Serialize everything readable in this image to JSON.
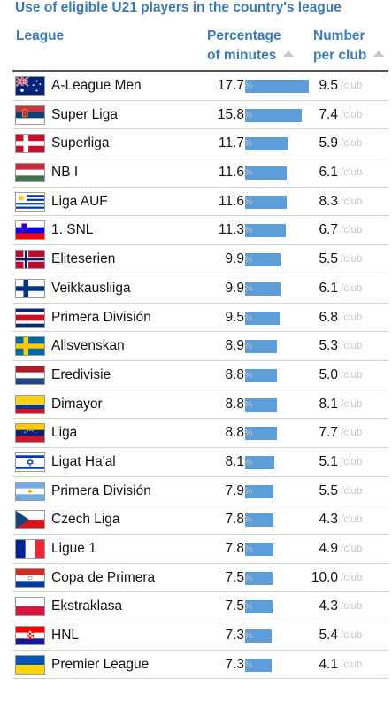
{
  "title": "Use of eligible U21 players in the country's league",
  "headers": {
    "league": "League",
    "pct_line1": "Percentage",
    "pct_line2": "of minutes",
    "num_line1": "Number",
    "num_line2": "per club"
  },
  "units": {
    "pct": "%",
    "num": "/club"
  },
  "colors": {
    "bar": "#5d9dd9",
    "header_text": "#3a7ab8",
    "unit_text": "#c4c4c4"
  },
  "chart_data": {
    "type": "table",
    "title": "Use of eligible U21 players in the country's league",
    "columns": [
      "League",
      "Percentage of minutes",
      "Number per club"
    ],
    "rows": [
      {
        "flag": "australia-flag",
        "league": "A-League Men",
        "pct": 17.7,
        "pct_text": "17.7",
        "num": "9.5"
      },
      {
        "flag": "serbia-flag",
        "league": "Super Liga",
        "pct": 15.8,
        "pct_text": "15.8",
        "num": "7.4"
      },
      {
        "flag": "denmark-flag",
        "league": "Superliga",
        "pct": 11.7,
        "pct_text": "11.7",
        "num": "5.9"
      },
      {
        "flag": "hungary-flag",
        "league": "NB I",
        "pct": 11.6,
        "pct_text": "11.6",
        "num": "6.1"
      },
      {
        "flag": "uruguay-flag",
        "league": "Liga AUF",
        "pct": 11.6,
        "pct_text": "11.6",
        "num": "8.3"
      },
      {
        "flag": "slovenia-flag",
        "league": "1. SNL",
        "pct": 11.3,
        "pct_text": "11.3",
        "num": "6.7"
      },
      {
        "flag": "norway-flag",
        "league": "Eliteserien",
        "pct": 9.9,
        "pct_text": "9.9",
        "num": "5.5"
      },
      {
        "flag": "finland-flag",
        "league": "Veikkausliiga",
        "pct": 9.9,
        "pct_text": "9.9",
        "num": "6.1"
      },
      {
        "flag": "costa-rica-flag",
        "league": "Primera División",
        "pct": 9.5,
        "pct_text": "9.5",
        "num": "6.8"
      },
      {
        "flag": "sweden-flag",
        "league": "Allsvenskan",
        "pct": 8.9,
        "pct_text": "8.9",
        "num": "5.3"
      },
      {
        "flag": "netherlands-flag",
        "league": "Eredivisie",
        "pct": 8.8,
        "pct_text": "8.8",
        "num": "5.0"
      },
      {
        "flag": "colombia-flag",
        "league": "Dimayor",
        "pct": 8.8,
        "pct_text": "8.8",
        "num": "8.1"
      },
      {
        "flag": "venezuela-flag",
        "league": "Liga",
        "pct": 8.8,
        "pct_text": "8.8",
        "num": "7.7"
      },
      {
        "flag": "israel-flag",
        "league": "Ligat Ha'al",
        "pct": 8.1,
        "pct_text": "8.1",
        "num": "5.1"
      },
      {
        "flag": "argentina-flag",
        "league": "Primera División",
        "pct": 7.9,
        "pct_text": "7.9",
        "num": "5.5"
      },
      {
        "flag": "czech-flag",
        "league": "Czech Liga",
        "pct": 7.8,
        "pct_text": "7.8",
        "num": "4.3"
      },
      {
        "flag": "france-flag",
        "league": "Ligue 1",
        "pct": 7.8,
        "pct_text": "7.8",
        "num": "4.9"
      },
      {
        "flag": "paraguay-flag",
        "league": "Copa de Primera",
        "pct": 7.5,
        "pct_text": "7.5",
        "num": "10.0"
      },
      {
        "flag": "poland-flag",
        "league": "Ekstraklasa",
        "pct": 7.5,
        "pct_text": "7.5",
        "num": "4.3"
      },
      {
        "flag": "croatia-flag",
        "league": "HNL",
        "pct": 7.3,
        "pct_text": "7.3",
        "num": "5.4"
      },
      {
        "flag": "ukraine-flag",
        "league": "Premier League",
        "pct": 7.3,
        "pct_text": "7.3",
        "num": "4.1"
      }
    ]
  }
}
